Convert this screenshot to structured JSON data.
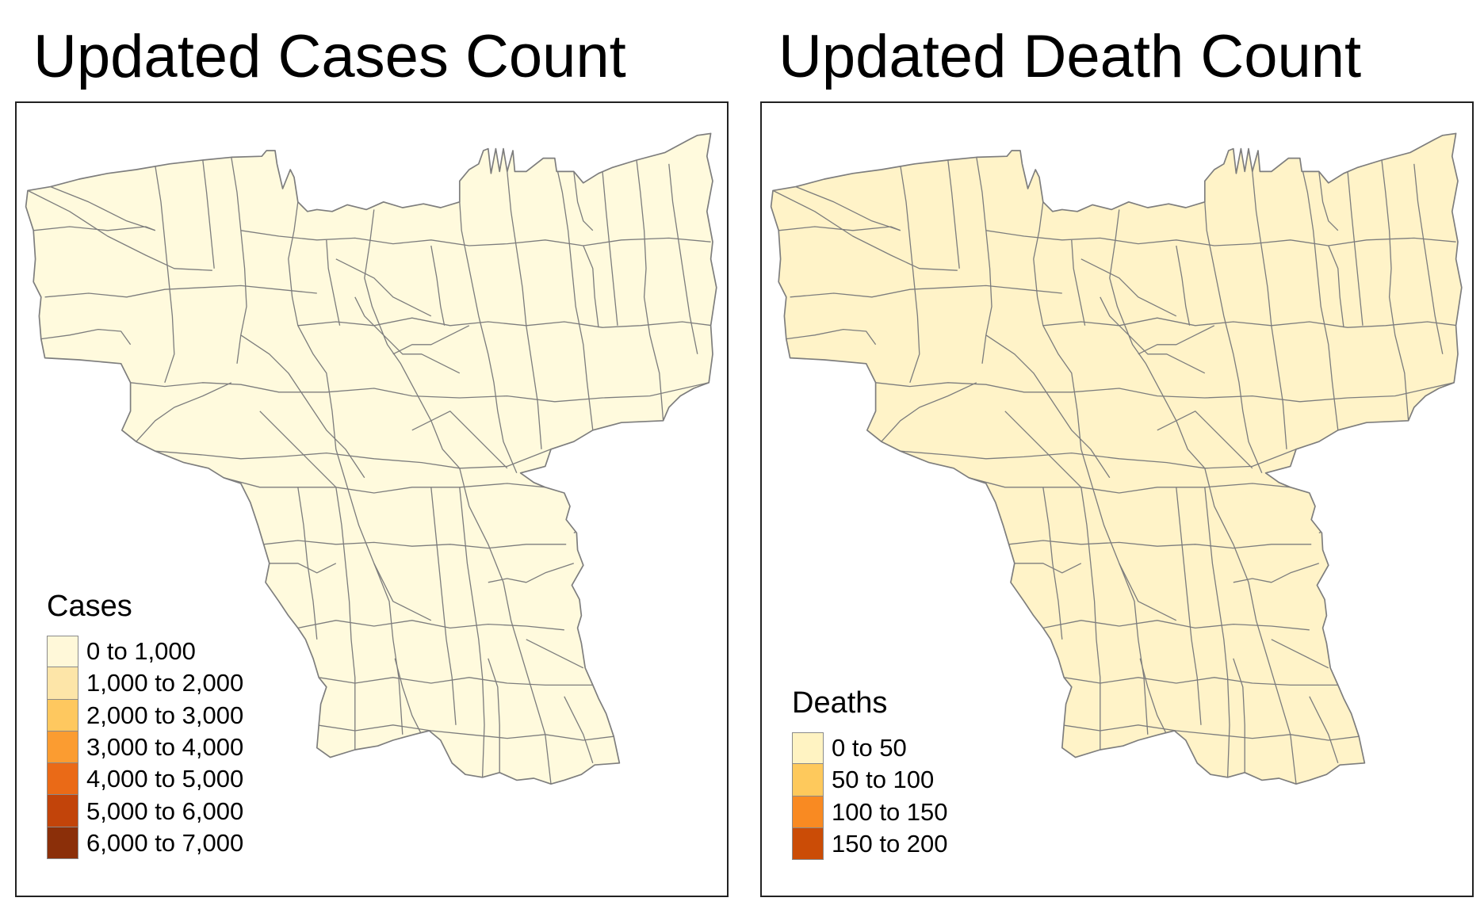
{
  "panels": [
    {
      "id": "cases",
      "title": "Updated Cases Count",
      "fill": "#fffadd",
      "legend": {
        "title": "Cases",
        "items": [
          {
            "label": "0 to 1,000",
            "color": "#fff8d9"
          },
          {
            "label": "1,000 to 2,000",
            "color": "#fde5a8"
          },
          {
            "label": "2,000 to 3,000",
            "color": "#fec85f"
          },
          {
            "label": "3,000 to 4,000",
            "color": "#fb9c31"
          },
          {
            "label": "4,000 to 5,000",
            "color": "#ea6a17"
          },
          {
            "label": "5,000 to 6,000",
            "color": "#c2440a"
          },
          {
            "label": "6,000 to 7,000",
            "color": "#8b2f09"
          }
        ]
      }
    },
    {
      "id": "deaths",
      "title": "Updated Death Count",
      "fill": "#fff3c8",
      "legend": {
        "title": "Deaths",
        "items": [
          {
            "label": "0 to 50",
            "color": "#fff3c2"
          },
          {
            "label": "50 to 100",
            "color": "#fec95c"
          },
          {
            "label": "100 to 150",
            "color": "#f98a22"
          },
          {
            "label": "150 to 200",
            "color": "#cb4c06"
          }
        ]
      }
    }
  ],
  "colors": {
    "boundary": "#7d7d7d",
    "frame": "#222222"
  }
}
